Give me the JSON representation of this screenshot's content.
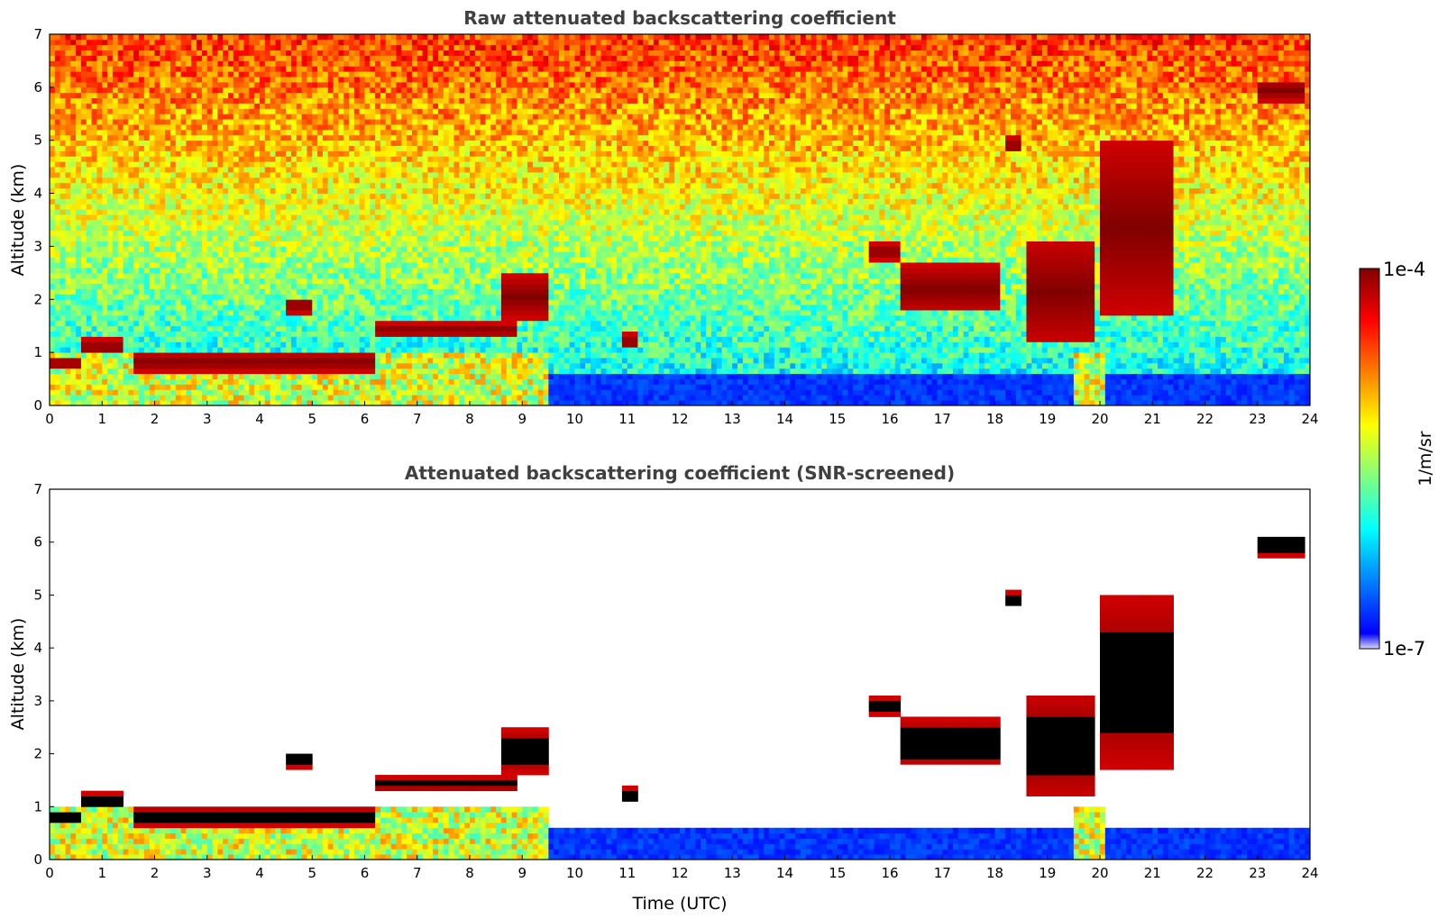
{
  "colors": {
    "colormap": [
      "#0000ff",
      "#0080ff",
      "#00ffff",
      "#80ff80",
      "#ffff00",
      "#ff8000",
      "#ff0000",
      "#800000"
    ],
    "low_end": "#d8d8f8",
    "title": "#404040"
  },
  "chart_data": [
    {
      "type": "heatmap",
      "title": "Raw attenuated backscattering coefficient",
      "xlabel": "",
      "ylabel": "Altitude (km)",
      "xlim": [
        0,
        24
      ],
      "ylim": [
        0,
        7
      ],
      "xticks": [
        "0",
        "1",
        "2",
        "3",
        "4",
        "5",
        "6",
        "7",
        "8",
        "9",
        "10",
        "11",
        "12",
        "13",
        "14",
        "15",
        "16",
        "17",
        "18",
        "19",
        "20",
        "21",
        "22",
        "23",
        "24"
      ],
      "yticks": [
        "0",
        "1",
        "2",
        "3",
        "4",
        "5",
        "6",
        "7"
      ],
      "screened": false,
      "cloud_layers": [
        {
          "t0": 0.0,
          "t1": 0.6,
          "base": 0.75,
          "top": 0.85
        },
        {
          "t0": 0.6,
          "t1": 1.4,
          "base": 1.0,
          "top": 1.2
        },
        {
          "t0": 1.65,
          "t1": 6.2,
          "base": 0.7,
          "top": 0.95
        },
        {
          "t0": 4.5,
          "t1": 5.0,
          "base": 1.8,
          "top": 2.0
        },
        {
          "t0": 6.2,
          "t1": 8.9,
          "base": 1.35,
          "top": 1.5
        },
        {
          "t0": 8.6,
          "t1": 9.5,
          "base": 1.7,
          "top": 2.4
        },
        {
          "t0": 10.9,
          "t1": 11.2,
          "base": 1.1,
          "top": 1.3
        },
        {
          "t0": 15.6,
          "t1": 16.2,
          "base": 2.8,
          "top": 3.0
        },
        {
          "t0": 16.2,
          "t1": 18.1,
          "base": 1.8,
          "top": 2.6
        },
        {
          "t0": 18.2,
          "t1": 18.5,
          "base": 4.8,
          "top": 5.0
        },
        {
          "t0": 18.6,
          "t1": 19.9,
          "base": 1.2,
          "top": 3.1
        },
        {
          "t0": 20.0,
          "t1": 21.4,
          "base": 1.8,
          "top": 4.9
        },
        {
          "t0": 23.0,
          "t1": 23.9,
          "base": 5.8,
          "top": 6.1
        }
      ]
    },
    {
      "type": "heatmap",
      "title": "Attenuated backscattering coefficient (SNR-screened)",
      "xlabel": "Time (UTC)",
      "ylabel": "Altitude (km)",
      "xlim": [
        0,
        24
      ],
      "ylim": [
        0,
        7
      ],
      "xticks": [
        "0",
        "1",
        "2",
        "3",
        "4",
        "5",
        "6",
        "7",
        "8",
        "9",
        "10",
        "11",
        "12",
        "13",
        "14",
        "15",
        "16",
        "17",
        "18",
        "19",
        "20",
        "21",
        "22",
        "23",
        "24"
      ],
      "yticks": [
        "0",
        "1",
        "2",
        "3",
        "4",
        "5",
        "6",
        "7"
      ],
      "screened": true,
      "cloud_layers": [
        {
          "t0": 0.0,
          "t1": 0.6,
          "base": 0.75,
          "top": 0.85
        },
        {
          "t0": 0.6,
          "t1": 1.4,
          "base": 1.0,
          "top": 1.2
        },
        {
          "t0": 1.65,
          "t1": 6.2,
          "base": 0.7,
          "top": 0.95
        },
        {
          "t0": 4.5,
          "t1": 5.0,
          "base": 1.8,
          "top": 2.0
        },
        {
          "t0": 6.2,
          "t1": 8.9,
          "base": 1.35,
          "top": 1.5
        },
        {
          "t0": 8.6,
          "t1": 9.5,
          "base": 1.7,
          "top": 2.4
        },
        {
          "t0": 10.9,
          "t1": 11.2,
          "base": 1.1,
          "top": 1.3
        },
        {
          "t0": 15.6,
          "t1": 16.2,
          "base": 2.8,
          "top": 3.0
        },
        {
          "t0": 16.2,
          "t1": 18.1,
          "base": 1.8,
          "top": 2.6
        },
        {
          "t0": 18.2,
          "t1": 18.5,
          "base": 4.8,
          "top": 5.0
        },
        {
          "t0": 18.6,
          "t1": 19.9,
          "base": 1.2,
          "top": 3.1
        },
        {
          "t0": 20.0,
          "t1": 21.4,
          "base": 1.8,
          "top": 4.9
        },
        {
          "t0": 23.0,
          "t1": 23.9,
          "base": 5.8,
          "top": 6.1
        }
      ]
    }
  ],
  "colorbar": {
    "max_label": "1e-4",
    "min_label": "1e-7",
    "unit_label": "1/m/sr"
  }
}
